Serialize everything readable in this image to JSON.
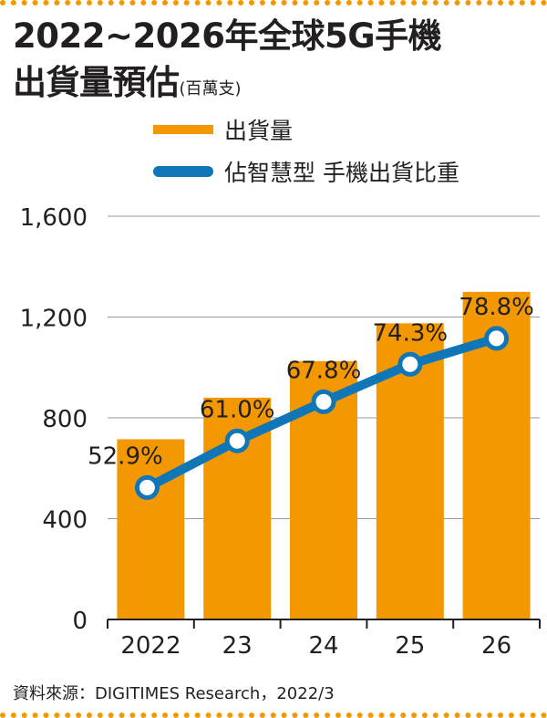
{
  "title": {
    "line1": "2022~2026年全球5G手機",
    "line2": "出貨量預估",
    "unit": "(百萬支)"
  },
  "legend": {
    "bar_label": "出貨量",
    "line_label": "佔智慧型 手機出貨比重"
  },
  "source": "資料來源：DIGITIMES Research，2022/3",
  "colors": {
    "bar": "#f39800",
    "line": "#0f76b8",
    "frame": "#f39800"
  },
  "chart_data": {
    "type": "bar",
    "categories": [
      "2022",
      "23",
      "24",
      "25",
      "26"
    ],
    "ylim": [
      0,
      1600
    ],
    "yticks": [
      0,
      400,
      800,
      1200,
      1600
    ],
    "ytick_labels": [
      "0",
      "400",
      "800",
      "1,200",
      "1,600"
    ],
    "grid": true,
    "legend_position": "top-right",
    "series": [
      {
        "name": "出貨量",
        "type": "bar",
        "values": [
          715,
          880,
          1025,
          1175,
          1300
        ]
      },
      {
        "name": "佔智慧型 手機出貨比重",
        "type": "line",
        "values": [
          52.9,
          61.0,
          67.8,
          74.3,
          78.8
        ],
        "labels": [
          "52.9%",
          "61.0%",
          "67.8%",
          "74.3%",
          "78.8%"
        ]
      }
    ]
  }
}
